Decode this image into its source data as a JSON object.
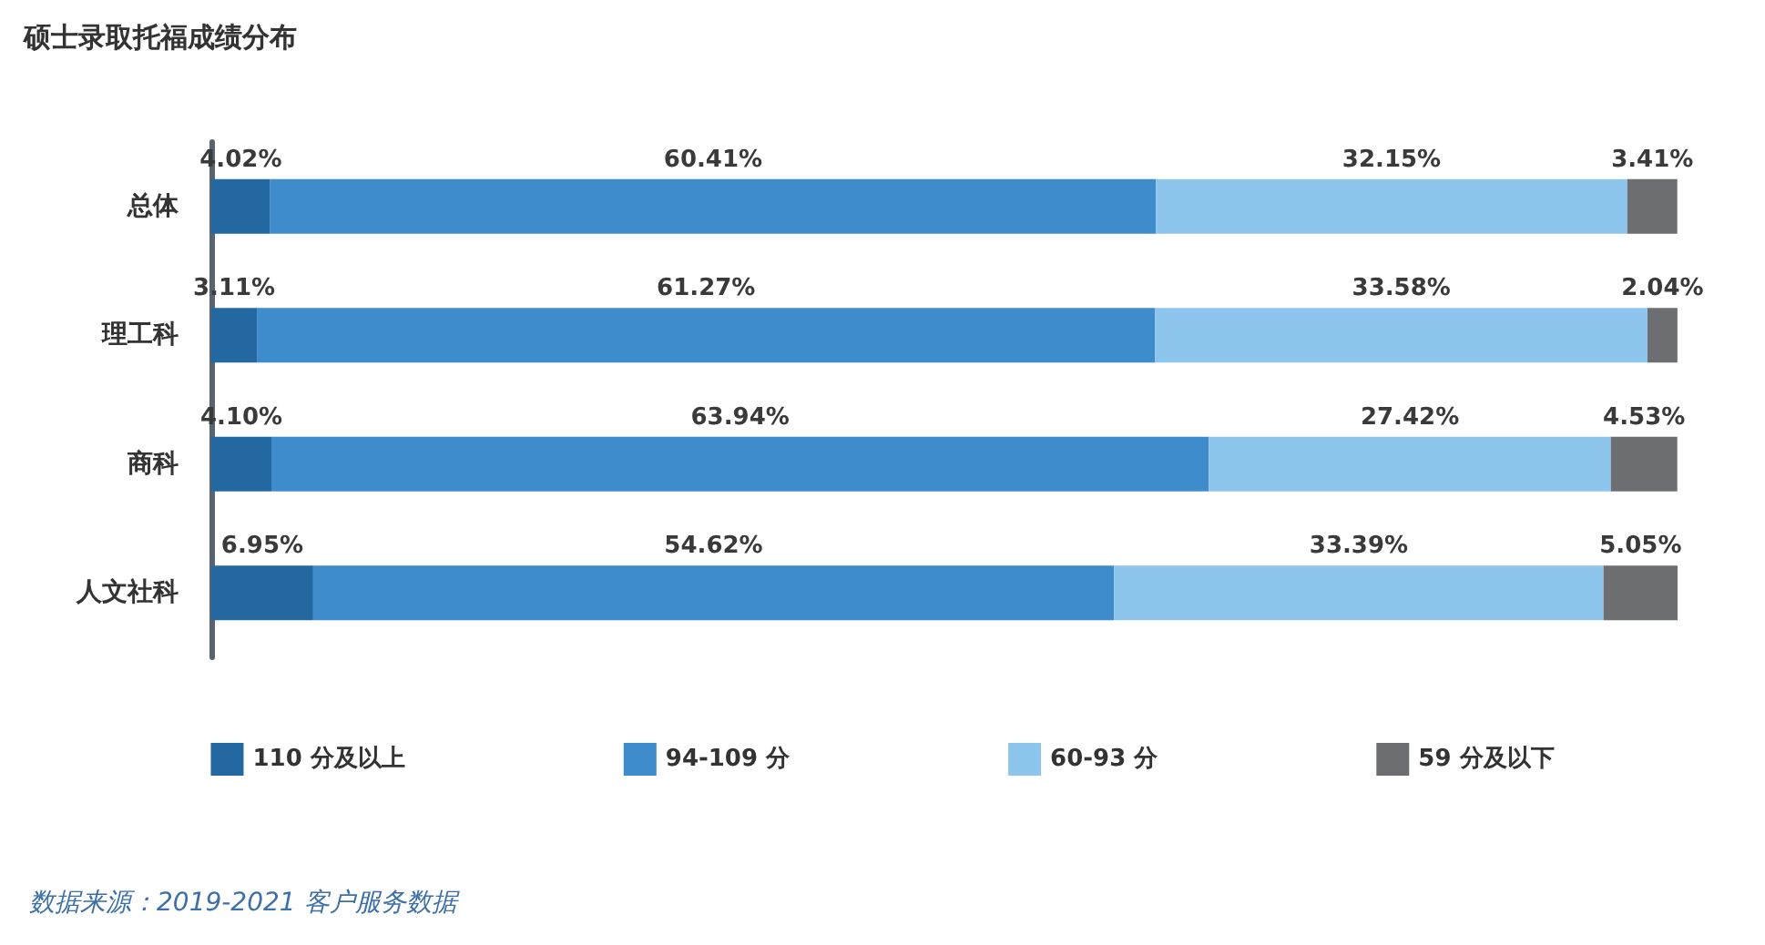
{
  "chart_data": {
    "type": "bar",
    "orientation": "horizontal",
    "stacked": true,
    "title": "硕士录取托福成绩分布",
    "categories": [
      "总体",
      "理工科",
      "商科",
      "人文社科"
    ],
    "series": [
      {
        "name": "110 分及以上",
        "color": "#2468a2",
        "values": [
          4.02,
          3.11,
          4.1,
          6.95
        ],
        "value_labels": [
          "4.02%",
          "3.11%",
          "4.10%",
          "6.95%"
        ]
      },
      {
        "name": "94-109 分",
        "color": "#3f8ccc",
        "values": [
          60.41,
          61.27,
          63.94,
          54.62
        ],
        "value_labels": [
          "60.41%",
          "61.27%",
          "63.94%",
          "54.62%"
        ]
      },
      {
        "name": "60-93 分",
        "color": "#8ec5ec",
        "values": [
          32.15,
          33.58,
          27.42,
          33.39
        ],
        "value_labels": [
          "32.15%",
          "33.58%",
          "27.42%",
          "33.39%"
        ]
      },
      {
        "name": "59 分及以下",
        "color": "#6d6e71",
        "values": [
          3.41,
          2.04,
          4.53,
          5.05
        ],
        "value_labels": [
          "3.41%",
          "2.04%",
          "4.53%",
          "5.05%"
        ]
      }
    ],
    "legend": "bottom",
    "annotations": [
      "数据来源：2019-2021 客户服务数据"
    ]
  }
}
